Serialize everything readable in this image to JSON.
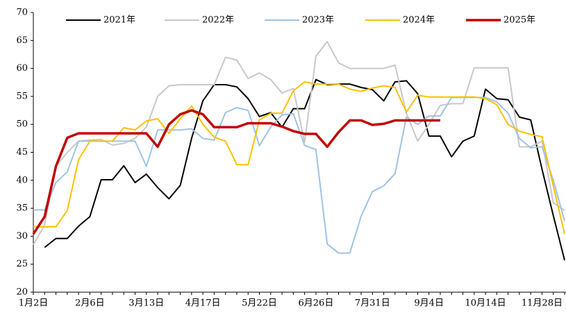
{
  "chart_data": {
    "type": "line",
    "categories": [
      "1月2日",
      null,
      null,
      null,
      null,
      "2月6日",
      null,
      null,
      null,
      null,
      "3月13日",
      null,
      null,
      null,
      null,
      "4月17日",
      null,
      null,
      null,
      null,
      "5月22日",
      null,
      null,
      null,
      null,
      "6月26日",
      null,
      null,
      null,
      null,
      "7月31日",
      null,
      null,
      null,
      null,
      "9月4日",
      null,
      null,
      null,
      null,
      "10月14日",
      null,
      null,
      null,
      null,
      "11月28日",
      null,
      null
    ],
    "ylim": [
      20,
      70
    ],
    "yticks": [
      20,
      25,
      30,
      35,
      40,
      45,
      50,
      55,
      60,
      65,
      70
    ],
    "legend": "top",
    "grid": false,
    "series": [
      {
        "name": "2021年",
        "color": "#000000",
        "width": 2,
        "values": [
          null,
          28,
          29.6,
          29.6,
          31.8,
          33.5,
          40.1,
          40.1,
          42.6,
          39.6,
          41.1,
          38.7,
          36.7,
          39.1,
          47.5,
          54.2,
          57.1,
          57.1,
          56.7,
          54.6,
          51.4,
          52.1,
          49.5,
          52.8,
          52.8,
          58,
          57.1,
          57.2,
          57.2,
          56.6,
          56.2,
          54.2,
          57.6,
          57.8,
          55.5,
          47.9,
          47.9,
          44.2,
          47,
          47.9,
          56.3,
          54.6,
          54.4,
          51.3,
          50.8,
          42,
          33.7,
          25.7
        ]
      },
      {
        "name": "2022年",
        "color": "#c8c8c8",
        "width": 2,
        "values": [
          28.5,
          32,
          42.5,
          45,
          47,
          47.2,
          47.3,
          46.3,
          46.6,
          47.5,
          49.5,
          55,
          56.9,
          57.1,
          57.1,
          57.1,
          57.1,
          62,
          61.5,
          58.2,
          59.2,
          58,
          55.6,
          56.4,
          46.8,
          62.2,
          64.8,
          61,
          60,
          60,
          60,
          60,
          60.6,
          52,
          47,
          50,
          53.4,
          53.7,
          53.7,
          60.1,
          60.1,
          60.1,
          60.1,
          46,
          46,
          47,
          36,
          34.6
        ]
      },
      {
        "name": "2023年",
        "color": "#9dc3e6",
        "width": 2,
        "values": [
          34.7,
          34.7,
          39.6,
          41.5,
          47,
          47,
          47,
          47,
          47,
          47,
          42.5,
          49,
          49,
          49,
          49.2,
          47.5,
          47.2,
          52.1,
          53,
          52.5,
          46.2,
          49.5,
          51.7,
          51.9,
          46.2,
          45.5,
          28.6,
          27,
          27,
          33.6,
          38,
          39,
          41.2,
          51.3,
          50,
          51.5,
          51.5,
          54.8,
          54.8,
          54.8,
          54.8,
          54,
          52,
          47.5,
          45.8,
          46,
          40,
          32.7
        ]
      },
      {
        "name": "2024年",
        "color": "#ffc000",
        "width": 2,
        "values": [
          31.7,
          31.7,
          31.7,
          34.6,
          43.7,
          47,
          47,
          47,
          49.4,
          49,
          50.6,
          51,
          48.4,
          51,
          53.3,
          50,
          47.7,
          47,
          42.8,
          42.8,
          50.8,
          52,
          52,
          56,
          57.6,
          57.2,
          57.2,
          57.2,
          56.3,
          55.9,
          56.5,
          56.9,
          56.6,
          52.2,
          55.2,
          54.9,
          54.9,
          54.9,
          54.9,
          54.9,
          54.6,
          53.5,
          50,
          48.8,
          48.2,
          47.8,
          39,
          30.4
        ]
      },
      {
        "name": "2025年",
        "color": "#c00000",
        "width": 3.5,
        "values": [
          30.4,
          33.5,
          42.5,
          47.6,
          48.4,
          48.4,
          48.4,
          48.4,
          48.4,
          48.4,
          48.4,
          46,
          50,
          51.8,
          52.5,
          51.8,
          49.5,
          49.5,
          49.5,
          50.2,
          50.2,
          50.2,
          49.6,
          48.8,
          48.3,
          48.3,
          46,
          48.6,
          50.7,
          50.7,
          49.9,
          50.1,
          50.7,
          50.7,
          50.7,
          50.7,
          50.7,
          null,
          null,
          null,
          null,
          null,
          null,
          null,
          null,
          null,
          null,
          null
        ]
      }
    ]
  }
}
